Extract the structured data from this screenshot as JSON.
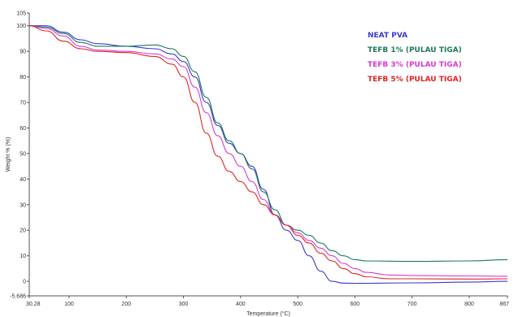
{
  "chart_data": {
    "type": "line",
    "title": "",
    "xlabel": "Temperature (°C)",
    "ylabel": "Weight % (%)",
    "xlim": [
      30.28,
      867
    ],
    "ylim": [
      -5.686,
      105
    ],
    "x_ticks": [
      {
        "value": 30.28,
        "label": "30.28"
      },
      {
        "value": 100,
        "label": "100"
      },
      {
        "value": 200,
        "label": "200"
      },
      {
        "value": 300,
        "label": "300"
      },
      {
        "value": 400,
        "label": "400"
      },
      {
        "value": 500,
        "label": "500"
      },
      {
        "value": 600,
        "label": "600"
      },
      {
        "value": 700,
        "label": "700"
      },
      {
        "value": 800,
        "label": "800"
      },
      {
        "value": 867,
        "label": "867"
      }
    ],
    "y_ticks": [
      {
        "value": 105,
        "label": "105"
      },
      {
        "value": 100,
        "label": "100"
      },
      {
        "value": 90,
        "label": "90"
      },
      {
        "value": 80,
        "label": "80"
      },
      {
        "value": 70,
        "label": "70"
      },
      {
        "value": 60,
        "label": "60"
      },
      {
        "value": 50,
        "label": "50"
      },
      {
        "value": 40,
        "label": "40"
      },
      {
        "value": 30,
        "label": "30"
      },
      {
        "value": 20,
        "label": "20"
      },
      {
        "value": 10,
        "label": "10"
      },
      {
        "value": 0,
        "label": "0"
      },
      {
        "value": -5.686,
        "label": "-5.686"
      }
    ],
    "grid": false,
    "legend_placement": "top-right",
    "series": [
      {
        "name": "NEAT PVA",
        "color": "#3a3ad0",
        "points": [
          [
            30,
            100
          ],
          [
            60,
            100
          ],
          [
            90,
            97.5
          ],
          [
            120,
            94.5
          ],
          [
            150,
            93
          ],
          [
            200,
            92
          ],
          [
            250,
            91
          ],
          [
            280,
            89
          ],
          [
            300,
            86
          ],
          [
            320,
            80
          ],
          [
            340,
            70
          ],
          [
            360,
            61
          ],
          [
            380,
            54
          ],
          [
            400,
            50
          ],
          [
            420,
            45
          ],
          [
            440,
            36
          ],
          [
            460,
            26
          ],
          [
            480,
            20
          ],
          [
            500,
            16
          ],
          [
            520,
            10
          ],
          [
            540,
            4
          ],
          [
            560,
            0
          ],
          [
            580,
            -0.7
          ],
          [
            600,
            -0.8
          ],
          [
            700,
            -0.6
          ],
          [
            800,
            -0.3
          ],
          [
            867,
            0
          ]
        ]
      },
      {
        "name": "TEFB 1% (PULAU TIGA)",
        "color": "#1a7a5a",
        "points": [
          [
            30,
            100
          ],
          [
            60,
            99.5
          ],
          [
            90,
            97
          ],
          [
            120,
            93.5
          ],
          [
            150,
            92
          ],
          [
            200,
            92
          ],
          [
            250,
            92.5
          ],
          [
            280,
            91
          ],
          [
            300,
            88
          ],
          [
            320,
            82
          ],
          [
            340,
            72
          ],
          [
            360,
            62
          ],
          [
            380,
            55
          ],
          [
            400,
            50
          ],
          [
            420,
            44
          ],
          [
            440,
            35
          ],
          [
            460,
            28
          ],
          [
            480,
            22
          ],
          [
            500,
            20
          ],
          [
            520,
            18
          ],
          [
            540,
            15
          ],
          [
            560,
            12
          ],
          [
            580,
            10
          ],
          [
            600,
            8.5
          ],
          [
            620,
            8
          ],
          [
            700,
            7.8
          ],
          [
            800,
            8
          ],
          [
            867,
            8.5
          ]
        ]
      },
      {
        "name": "TEFB 3% (PULAU TIGA)",
        "color": "#d63cd6",
        "points": [
          [
            30,
            100
          ],
          [
            60,
            99
          ],
          [
            90,
            96
          ],
          [
            120,
            92
          ],
          [
            150,
            90.5
          ],
          [
            200,
            90
          ],
          [
            250,
            89
          ],
          [
            280,
            87
          ],
          [
            300,
            84
          ],
          [
            320,
            76
          ],
          [
            340,
            66
          ],
          [
            360,
            57
          ],
          [
            380,
            50
          ],
          [
            400,
            45
          ],
          [
            420,
            39
          ],
          [
            440,
            32
          ],
          [
            460,
            26
          ],
          [
            480,
            22
          ],
          [
            500,
            19
          ],
          [
            520,
            16
          ],
          [
            540,
            13
          ],
          [
            560,
            10
          ],
          [
            580,
            7
          ],
          [
            600,
            5
          ],
          [
            620,
            3.5
          ],
          [
            660,
            2.5
          ],
          [
            700,
            2.3
          ],
          [
            800,
            2.1
          ],
          [
            867,
            2
          ]
        ]
      },
      {
        "name": "TEFB 5% (PULAU TIGA)",
        "color": "#e02424",
        "points": [
          [
            30,
            100
          ],
          [
            60,
            98
          ],
          [
            90,
            94
          ],
          [
            120,
            91
          ],
          [
            150,
            90
          ],
          [
            200,
            89.5
          ],
          [
            250,
            88
          ],
          [
            280,
            85
          ],
          [
            300,
            80
          ],
          [
            320,
            70
          ],
          [
            340,
            58
          ],
          [
            360,
            49
          ],
          [
            380,
            43
          ],
          [
            400,
            39
          ],
          [
            420,
            35
          ],
          [
            440,
            30
          ],
          [
            460,
            26
          ],
          [
            480,
            22
          ],
          [
            500,
            18
          ],
          [
            520,
            15
          ],
          [
            540,
            11
          ],
          [
            560,
            8
          ],
          [
            580,
            5
          ],
          [
            600,
            3
          ],
          [
            620,
            1.8
          ],
          [
            660,
            1
          ],
          [
            700,
            1
          ],
          [
            800,
            0.9
          ],
          [
            867,
            1
          ]
        ]
      }
    ]
  }
}
